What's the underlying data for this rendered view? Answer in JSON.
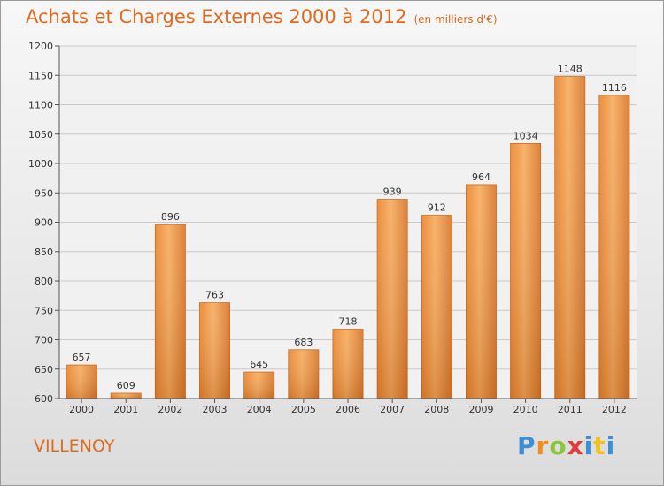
{
  "header": {
    "title": "Achats et Charges Externes 2000 à 2012",
    "subtitle": "(en milliers d'€)"
  },
  "footer": {
    "city": "VILLENOY",
    "logo": [
      "P",
      "r",
      "o",
      "x",
      "i",
      "t",
      "i"
    ]
  },
  "colors": {
    "title": "#e06a1d",
    "bar_light": "#f5a55a",
    "bar_dark": "#d2711f",
    "bar_border": "#c8641c",
    "grid": "#c9c9c9",
    "axis": "#555555"
  },
  "chart_data": {
    "type": "bar",
    "title": "Achats et Charges Externes 2000 à 2012",
    "subtitle": "(en milliers d'€)",
    "xlabel": "",
    "ylabel": "",
    "categories": [
      "2000",
      "2001",
      "2002",
      "2003",
      "2004",
      "2005",
      "2006",
      "2007",
      "2008",
      "2009",
      "2010",
      "2011",
      "2012"
    ],
    "values": [
      657,
      609,
      896,
      763,
      645,
      683,
      718,
      939,
      912,
      964,
      1034,
      1148,
      1116
    ],
    "ylim": [
      600,
      1200
    ],
    "yticks": [
      600,
      650,
      700,
      750,
      800,
      850,
      900,
      950,
      1000,
      1050,
      1100,
      1150,
      1200
    ],
    "grid": true,
    "data_labels": true
  }
}
